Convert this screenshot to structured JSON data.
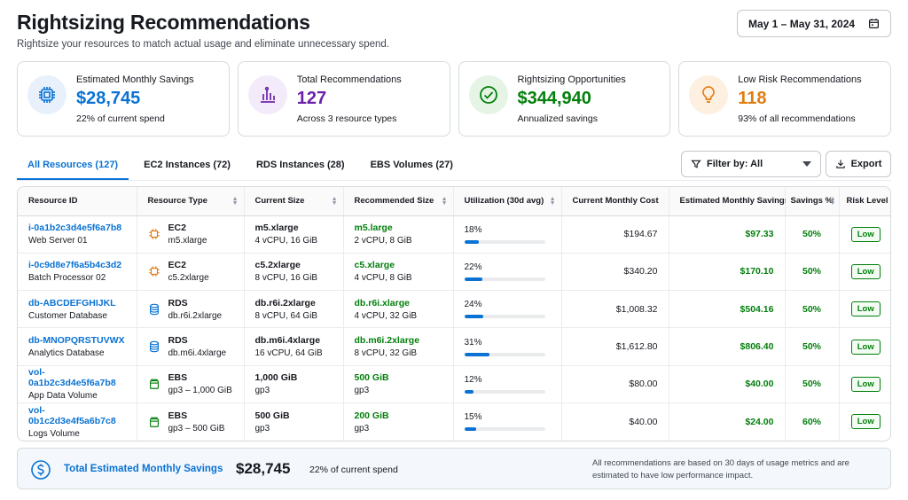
{
  "header": {
    "title": "Rightsizing Recommendations",
    "subtitle": "Rightsize your resources to match actual usage and eliminate unnecessary spend.",
    "date_range": "May 1 – May 31, 2024"
  },
  "cards": [
    {
      "label": "Estimated Monthly Savings",
      "value": "$28,745",
      "sub": "22% of current spend",
      "icon": "cpu-chip-icon",
      "color": "#0972d3",
      "bg": "#e8f1fb"
    },
    {
      "label": "Total Recommendations",
      "value": "127",
      "sub": "Across 3 resource types",
      "icon": "bar-chart-icon",
      "color": "#6b21a8",
      "bg": "#f3ebfa"
    },
    {
      "label": "Rightsizing Opportunities",
      "value": "$344,940",
      "sub": "Annualized savings",
      "icon": "check-circle-icon",
      "color": "#037f0c",
      "bg": "#e6f4e6"
    },
    {
      "label": "Low Risk Recommendations",
      "value": "118",
      "sub": "93% of all recommendations",
      "icon": "lightbulb-icon",
      "color": "#e07d10",
      "bg": "#fdf0e0"
    }
  ],
  "tabs": [
    {
      "label": "All Resources (127)",
      "active": true
    },
    {
      "label": "EC2 Instances (72)",
      "active": false
    },
    {
      "label": "RDS Instances (28)",
      "active": false
    },
    {
      "label": "EBS Volumes (27)",
      "active": false
    }
  ],
  "toolbar": {
    "filter_label": "Filter by: All",
    "export_label": "Export"
  },
  "table": {
    "columns": [
      "Resource ID",
      "Resource Type",
      "Current Size",
      "Recommended Size",
      "Utilization (30d avg)",
      "Current Monthly Cost",
      "Estimated Monthly Savings",
      "Savings %",
      "Risk Level"
    ],
    "rows": [
      {
        "id": "i-0a1b2c3d4e5f6a7b8",
        "name": "Web Server 01",
        "type": "EC2",
        "type_sub": "m5.xlarge",
        "type_icon": "ec2-chip-icon",
        "cur": "m5.xlarge",
        "cur_sub": "4 vCPU, 16 GiB",
        "rec": "m5.large",
        "rec_sub": "2 vCPU, 8 GiB",
        "util": "18%",
        "util_value": 0.18,
        "cost": "$194.67",
        "save": "$97.33",
        "pct": "50%",
        "risk": "Low"
      },
      {
        "id": "i-0c9d8e7f6a5b4c3d2",
        "name": "Batch Processor 02",
        "type": "EC2",
        "type_sub": "c5.2xlarge",
        "type_icon": "ec2-chip-icon",
        "cur": "c5.2xlarge",
        "cur_sub": "8 vCPU, 16 GiB",
        "rec": "c5.xlarge",
        "rec_sub": "4 vCPU, 8 GiB",
        "util": "22%",
        "util_value": 0.22,
        "cost": "$340.20",
        "save": "$170.10",
        "pct": "50%",
        "risk": "Low"
      },
      {
        "id": "db-ABCDEFGHIJKL",
        "name": "Customer Database",
        "type": "RDS",
        "type_sub": "db.r6i.2xlarge",
        "type_icon": "database-icon",
        "cur": "db.r6i.2xlarge",
        "cur_sub": "8 vCPU, 64 GiB",
        "rec": "db.r6i.xlarge",
        "rec_sub": "4 vCPU, 32 GiB",
        "util": "24%",
        "util_value": 0.24,
        "cost": "$1,008.32",
        "save": "$504.16",
        "pct": "50%",
        "risk": "Low"
      },
      {
        "id": "db-MNOPQRSTUVWX",
        "name": "Analytics Database",
        "type": "RDS",
        "type_sub": "db.m6i.4xlarge",
        "type_icon": "database-icon",
        "cur": "db.m6i.4xlarge",
        "cur_sub": "16 vCPU, 64 GiB",
        "rec": "db.m6i.2xlarge",
        "rec_sub": "8 vCPU, 32 GiB",
        "util": "31%",
        "util_value": 0.31,
        "cost": "$1,612.80",
        "save": "$806.40",
        "pct": "50%",
        "risk": "Low"
      },
      {
        "id": "vol-0a1b2c3d4e5f6a7b8",
        "name": "App Data Volume",
        "type": "EBS",
        "type_sub": "gp3 – 1,000 GiB",
        "type_icon": "ebs-volume-icon",
        "cur": "1,000 GiB",
        "cur_sub": "gp3",
        "rec": "500 GiB",
        "rec_sub": "gp3",
        "util": "12%",
        "util_value": 0.12,
        "cost": "$80.00",
        "save": "$40.00",
        "pct": "50%",
        "risk": "Low"
      },
      {
        "id": "vol-0b1c2d3e4f5a6b7c8",
        "name": "Logs Volume",
        "type": "EBS",
        "type_sub": "gp3 – 500 GiB",
        "type_icon": "ebs-volume-icon",
        "cur": "500 GiB",
        "cur_sub": "gp3",
        "rec": "200 GiB",
        "rec_sub": "gp3",
        "util": "15%",
        "util_value": 0.15,
        "cost": "$40.00",
        "save": "$24.00",
        "pct": "60%",
        "risk": "Low"
      }
    ]
  },
  "footer": {
    "label": "Total Estimated Monthly Savings",
    "value": "$28,745",
    "sub": "22% of current spend",
    "note": "All recommendations are based on 30 days of usage metrics and are estimated to have low performance impact.",
    "icon": "dollar-circle-icon"
  }
}
